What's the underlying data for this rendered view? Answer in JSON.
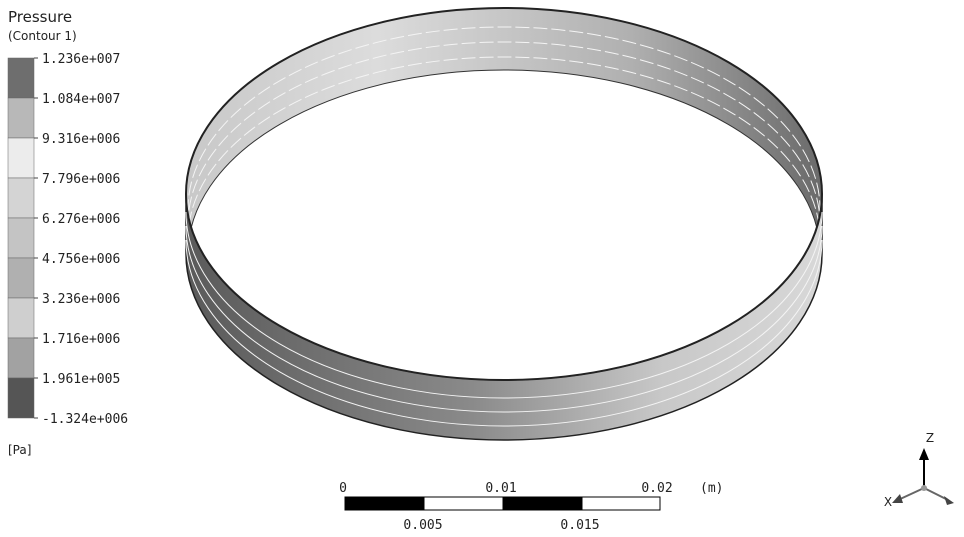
{
  "legend": {
    "title": "Pressure",
    "subtitle": "(Contour 1)",
    "levels": [
      "1.236e+007",
      "1.084e+007",
      "9.316e+006",
      "7.796e+006",
      "6.276e+006",
      "4.756e+006",
      "3.236e+006",
      "1.716e+006",
      "1.961e+005",
      "-1.324e+006"
    ],
    "unit": "[Pa]"
  },
  "scale_bar": {
    "top_labels": [
      "0",
      "0.01",
      "0.02"
    ],
    "unit": "(m)",
    "bottom_labels": [
      "0.005",
      "0.015"
    ]
  },
  "triad": {
    "z": "Z",
    "x": "X"
  }
}
